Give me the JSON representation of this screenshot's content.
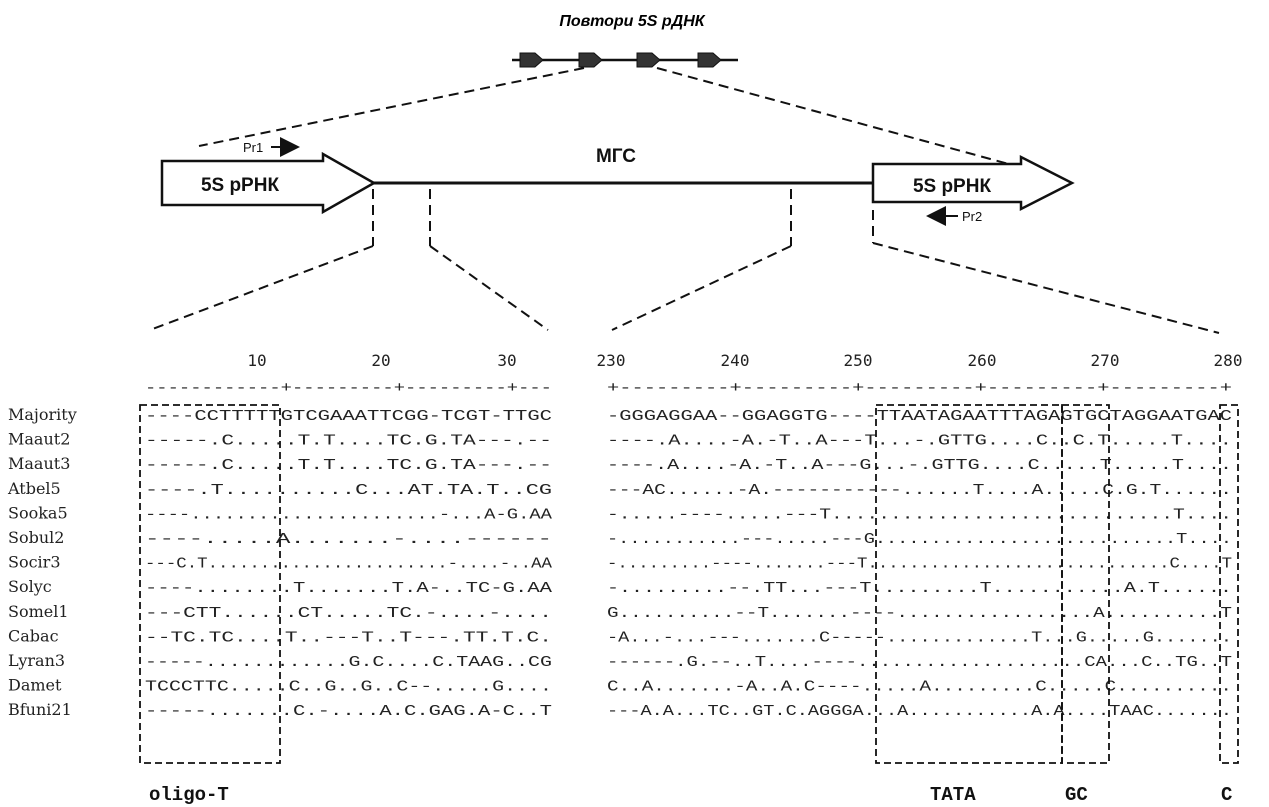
{
  "figure": {
    "title": "Повтори 5S рДНК",
    "gene_label": "5S рРНК",
    "spacer_label": "МГС",
    "primer_forward": "Pr1",
    "primer_reverse": "Pr2"
  },
  "alignment": {
    "left_ticks": [
      "10",
      "20",
      "30"
    ],
    "right_ticks": [
      "230",
      "240",
      "250",
      "260",
      "270",
      "280"
    ],
    "left_ruler": "------------+---------+---------+---",
    "right_ruler": "+---------+---------+---------+---------+---------+",
    "box_labels": [
      "oligo-T",
      "TATA",
      "GC",
      "C"
    ],
    "rows": [
      {
        "name": "Majority",
        "left": "----CCTTTTTGTCGAAATTCGG-TCGT-TTGC",
        "right": "-GGGAGGAA--GGAGGTG----TTAATAGAATTTAGAGTGCTAGGAATGAC"
      },
      {
        "name": "Maaut2",
        "left": "-----.C.....T.T....TC.G.TA---.--",
        "right": "----.A....-A.-T..A---T...-.GTTG....C..C.T.....T...."
      },
      {
        "name": "Maaut3",
        "left": "-----.C.....T.T....TC.G.TA---.--",
        "right": "----.A....-A.-T..A---G...-.GTTG....C.....T.....T...."
      },
      {
        "name": "Atbel5",
        "left": "----.T..........C...AT.TA.T..CG",
        "right": "---AC......-A.-----------......T....A.....C.G.T......"
      },
      {
        "name": "Sooka5",
        "left": "----......................-...A-G.AA",
        "right": "-.....----.....---T.............................T...."
      },
      {
        "name": "Sobul2",
        "left": "----.....A.......-....------",
        "right": "-...........---.....---G...........................T...."
      },
      {
        "name": "Socir3",
        "left": "---C.T.......................-....-..AA",
        "right": "-.........----.......---T.............................C....T"
      },
      {
        "name": "Solyc",
        "left": "----........T.......T.A-..TC-G.AA",
        "right": "-.........--.TT...---T.........T...........A.T......"
      },
      {
        "name": "Somel1",
        "left": "---CTT......CT.....TC.-....-....",
        "right": "G..........--T.......----.................A..........T"
      },
      {
        "name": "Cabac",
        "left": "--TC.TC....T..---T..T---.TT.T.C.",
        "right": "-A...-...---.......C-----.............T...G.....G......."
      },
      {
        "name": "Lyran3",
        "left": "-----............G.C....C.TAAG..CG",
        "right": "------.G.--..T....----....................CA...C..TG..T"
      },
      {
        "name": "Damet",
        "left": "TCCCTTC.....C..G..G..C--.....G....",
        "right": "C..A.......-A..A.C----.....A.........C.....C.........."
      },
      {
        "name": "Bfuni21",
        "left": "-----.......C.-....A.C.GAG.A-C..T",
        "right": "---A.A...TC..GT.C.AGGGA...A...........A.A....TAAC......."
      }
    ]
  }
}
